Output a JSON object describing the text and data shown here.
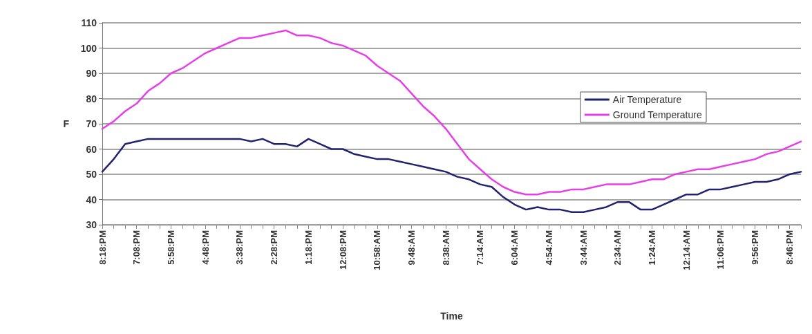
{
  "chart_data": {
    "type": "line",
    "xlabel": "Time",
    "ylabel": "F",
    "categories": [
      "8:18:PM",
      null,
      null,
      "7:08:PM",
      null,
      null,
      "5:58:PM",
      null,
      null,
      "4:48:PM",
      null,
      null,
      "3:38:PM",
      null,
      null,
      "2:28:PM",
      null,
      null,
      "1:18:PM",
      null,
      null,
      "12:08:PM",
      null,
      null,
      "10:58:AM",
      null,
      null,
      "9:48:AM",
      null,
      null,
      "8:38:AM",
      null,
      null,
      "7:14:AM",
      null,
      null,
      "6:04:AM",
      null,
      null,
      "4:54:AM",
      null,
      null,
      "3:44:AM",
      null,
      null,
      "2:34:AM",
      null,
      null,
      "1:24:AM",
      null,
      null,
      "12:14:AM",
      null,
      null,
      "11:06:PM",
      null,
      null,
      "9:56:PM",
      null,
      null,
      "8:46:PM",
      null
    ],
    "series": [
      {
        "name": "Air Temperature",
        "color": "#22226e",
        "values": [
          51,
          56,
          62,
          63,
          64,
          64,
          64,
          64,
          64,
          64,
          64,
          64,
          64,
          63,
          64,
          62,
          62,
          61,
          64,
          62,
          60,
          60,
          58,
          57,
          56,
          56,
          55,
          54,
          53,
          52,
          51,
          49,
          48,
          46,
          45,
          41,
          38,
          36,
          37,
          36,
          36,
          35,
          35,
          36,
          37,
          39,
          39,
          36,
          36,
          38,
          40,
          42,
          42,
          44,
          44,
          45,
          46,
          47,
          47,
          48,
          50,
          51
        ]
      },
      {
        "name": "Ground Temperature",
        "color": "#e83ee8",
        "values": [
          68,
          71,
          75,
          78,
          83,
          86,
          90,
          92,
          95,
          98,
          100,
          102,
          104,
          104,
          105,
          106,
          107,
          105,
          105,
          104,
          102,
          101,
          99,
          97,
          93,
          90,
          87,
          82,
          77,
          73,
          68,
          62,
          56,
          52,
          48,
          45,
          43,
          42,
          42,
          43,
          43,
          44,
          44,
          45,
          46,
          46,
          46,
          47,
          48,
          48,
          50,
          51,
          52,
          52,
          53,
          54,
          55,
          56,
          58,
          59,
          61,
          63
        ]
      }
    ],
    "ylim": [
      30,
      110
    ],
    "yticks": [
      30,
      40,
      50,
      60,
      70,
      80,
      90,
      100,
      110
    ],
    "grid": "y",
    "legend": "right",
    "marker": "none",
    "line_style": "solid"
  }
}
